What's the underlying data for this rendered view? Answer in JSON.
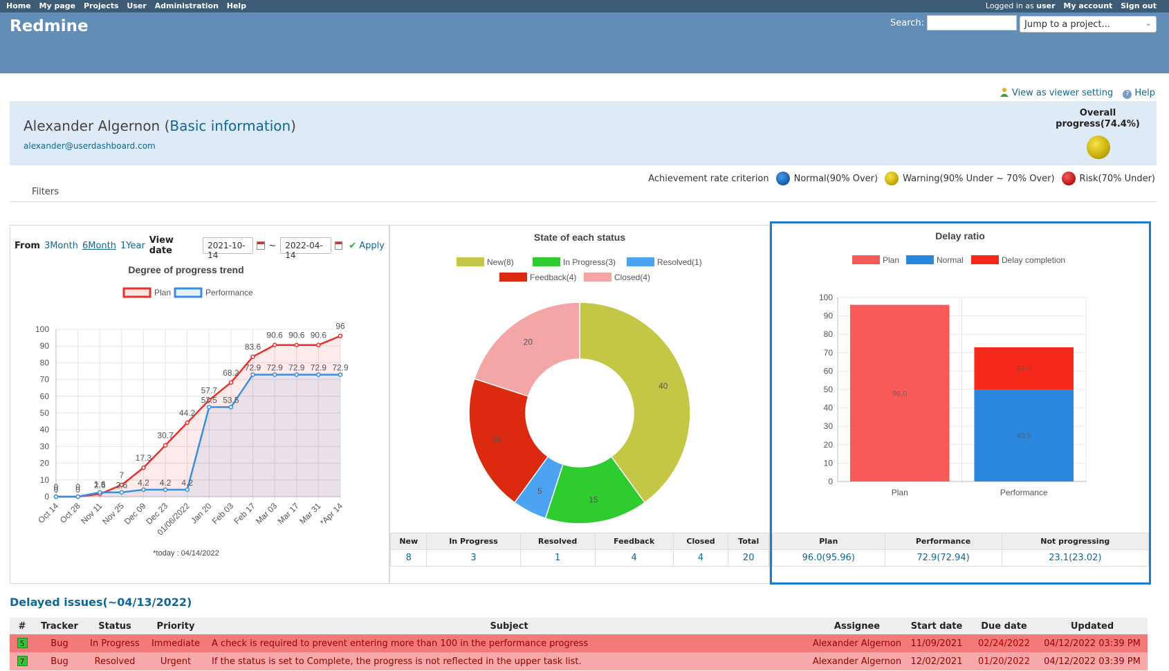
{
  "top_menu": {
    "items": [
      "Home",
      "My page",
      "Projects",
      "User",
      "Administration",
      "Help"
    ],
    "logged_in_prefix": "Logged in as",
    "logged_in_user": "user",
    "my_account": "My account",
    "sign_out": "Sign out"
  },
  "header": {
    "title": "Redmine",
    "search_label": "Search:",
    "jump_placeholder": "Jump to a project..."
  },
  "links": {
    "view_as": "View as viewer setting",
    "help": "Help"
  },
  "user": {
    "name": "Alexander Algernon",
    "info_link": "Basic information",
    "email": "alexander@userdashboard.com",
    "overall_progress": "Overall progress(74.4%)"
  },
  "criteria": {
    "label": "Achievement rate criterion",
    "normal": "Normal(90% Over)",
    "warning": "Warning(90% Under ~ 70% Over)",
    "risk": "Risk(70% Under)",
    "colors": {
      "normal": "#1560b0",
      "warning": "#c8ad08",
      "risk": "#c01414"
    }
  },
  "filters": {
    "label": "Filters"
  },
  "trend": {
    "from_label": "From",
    "ranges": [
      "3Month",
      "6Month",
      "1Year"
    ],
    "view_date_label": "View date",
    "date_from": "2021-10-14",
    "date_sep": "~",
    "date_to": "2022-04-14",
    "apply": "Apply",
    "footnote": "*today : 04/14/2022"
  },
  "status": {
    "headers": [
      "New",
      "In Progress",
      "Resolved",
      "Feedback",
      "Closed",
      "Total"
    ],
    "values": [
      "8",
      "3",
      "1",
      "4",
      "4",
      "20"
    ]
  },
  "delay": {
    "headers": [
      "Plan",
      "Performance",
      "Not progressing"
    ],
    "values": [
      "96.0(95.96)",
      "72.9(72.94)",
      "23.1(23.02)"
    ]
  },
  "issues": {
    "title": "Delayed issues(~04/13/2022)",
    "columns": [
      "#",
      "Tracker",
      "Status",
      "Priority",
      "Subject",
      "Assignee",
      "Start date",
      "Due date",
      "Updated"
    ],
    "rows": [
      {
        "id": "5",
        "tracker": "Bug",
        "status": "In Progress",
        "priority": "Immediate",
        "subject": "A check is required to prevent entering more than 100 in the performance progress",
        "assignee": "Alexander Algernon",
        "start": "11/09/2021",
        "due": "02/24/2022",
        "updated": "04/12/2022 03:39 PM"
      },
      {
        "id": "7",
        "tracker": "Bug",
        "status": "Resolved",
        "priority": "Urgent",
        "subject": "If the status is set to Complete, the progress is not reflected in the upper task list.",
        "assignee": "Alexander Algernon",
        "start": "12/02/2021",
        "due": "01/20/2022",
        "updated": "04/12/2022 03:39 PM"
      }
    ]
  },
  "chart_data": [
    {
      "type": "line",
      "title": "Degree of progress trend",
      "x": [
        "Oct 14",
        "Oct 28",
        "Nov 11",
        "Nov 25",
        "Dec 09",
        "Dec 23",
        "01/06/2022",
        "Jan 20",
        "Feb 03",
        "Feb 17",
        "Mar 03",
        "Mar 17",
        "Mar 31",
        "*Apr 14"
      ],
      "ylim": [
        0,
        100
      ],
      "yticks": [
        0,
        10,
        20,
        30,
        40,
        50,
        60,
        70,
        80,
        90,
        100
      ],
      "series": [
        {
          "name": "Plan",
          "color": "#e8302d",
          "values": [
            0,
            0,
            1.6,
            7,
            17.3,
            30.7,
            44.2,
            57.7,
            68.2,
            83.6,
            90.6,
            90.6,
            90.6,
            96
          ]
        },
        {
          "name": "Performance",
          "color": "#3a8ee0",
          "values": [
            0,
            0,
            2.6,
            2.6,
            4.2,
            4.2,
            4.2,
            53.5,
            53.5,
            72.9,
            72.9,
            72.9,
            72.9,
            72.9
          ]
        }
      ],
      "grid": true,
      "legend": "top"
    },
    {
      "type": "pie",
      "title": "State of each status",
      "categories": [
        "New(8)",
        "In Progress(3)",
        "Resolved(1)",
        "Feedback(4)",
        "Closed(4)"
      ],
      "values": [
        40,
        15,
        5,
        20,
        20
      ],
      "colors": [
        "#c3c745",
        "#2ecc2e",
        "#4ba3f2",
        "#dc2a10",
        "#f4a6a6"
      ],
      "legend": "top"
    },
    {
      "type": "bar",
      "title": "Delay ratio",
      "categories": [
        "Plan",
        "Performance"
      ],
      "series": [
        {
          "name": "Plan",
          "color": "#f85a5a",
          "values": [
            96.0,
            0
          ]
        },
        {
          "name": "Normal",
          "color": "#2a87dd",
          "values": [
            0,
            49.9
          ]
        },
        {
          "name": "Delay completion",
          "color": "#f5281a",
          "values": [
            0,
            23.0
          ]
        }
      ],
      "data_labels": [
        "96.0",
        "49.9",
        "23.0"
      ],
      "ylim": [
        0,
        100
      ],
      "yticks": [
        0,
        10,
        20,
        30,
        40,
        50,
        60,
        70,
        80,
        90,
        100
      ],
      "stacked": true,
      "legend": "top"
    }
  ]
}
